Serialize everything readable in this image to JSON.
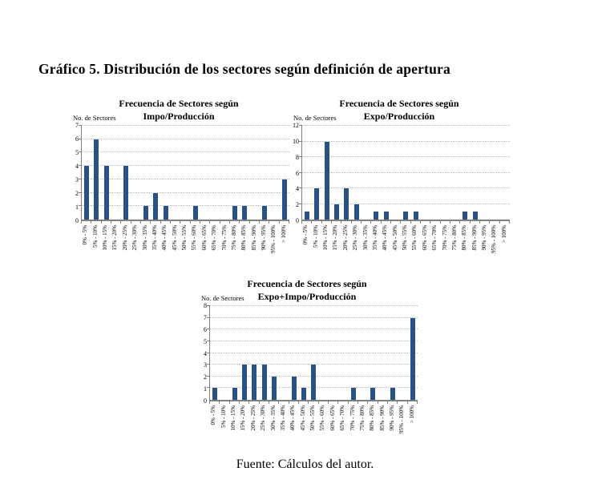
{
  "page": {
    "title": "Gráfico 5. Distribución de los sectores según definición de apertura",
    "source": "Fuente: Cálculos del autor."
  },
  "chart_data": [
    {
      "type": "bar",
      "title": "Frecuencia de Sectores según Impo/Producción",
      "title_line1": "Frecuencia de Sectores según",
      "title_line2": "Impo/Producción",
      "ylabel": "No. de Sectores",
      "xlabel": "",
      "categories": [
        "0% - 5%",
        "5% - 10%",
        "10% - 15%",
        "15% - 20%",
        "20% - 25%",
        "25% - 30%",
        "30% - 35%",
        "35% - 40%",
        "40% - 45%",
        "45% - 50%",
        "50% - 55%",
        "55% - 60%",
        "60% - 65%",
        "65% - 70%",
        "70% - 75%",
        "75% - 80%",
        "80% - 85%",
        "85% - 90%",
        "90% - 95%",
        "95% - 100%",
        "> 100%"
      ],
      "values": [
        4,
        6,
        4,
        0,
        4,
        0,
        1,
        2,
        1,
        0,
        0,
        1,
        0,
        0,
        0,
        1,
        1,
        0,
        1,
        0,
        3
      ],
      "ylim": [
        0,
        7
      ],
      "ytick_step": 1,
      "grid": true,
      "legend": "none",
      "bar_color": "#2a5183"
    },
    {
      "type": "bar",
      "title": "Frecuencia de Sectores según Expo/Producción",
      "title_line1": "Frecuencia de Sectores según",
      "title_line2": "Expo/Producción",
      "ylabel": "No. de Sectores",
      "xlabel": "",
      "categories": [
        "0% - 5%",
        "5% - 10%",
        "10% - 15%",
        "15% - 20%",
        "20% - 25%",
        "25% - 30%",
        "30% - 35%",
        "35% - 40%",
        "40% - 45%",
        "45% - 50%",
        "50% - 55%",
        "55% - 60%",
        "60% - 65%",
        "65% - 70%",
        "70% - 75%",
        "75% - 80%",
        "80% - 85%",
        "85% - 90%",
        "90% - 95%",
        "95% - 100%",
        "> 100%"
      ],
      "values": [
        1,
        4,
        10,
        2,
        4,
        2,
        0,
        1,
        1,
        0,
        1,
        1,
        0,
        0,
        0,
        0,
        1,
        1,
        0,
        0,
        0
      ],
      "ylim": [
        0,
        12
      ],
      "ytick_step": 2,
      "grid": true,
      "legend": "none",
      "bar_color": "#2a5183"
    },
    {
      "type": "bar",
      "title": "Frecuencia de Sectores según Expo+Impo/Producción",
      "title_line1": "Frecuencia de Sectores según",
      "title_line2": "Expo+Impo/Producción",
      "ylabel": "No. de Sectores",
      "xlabel": "",
      "categories": [
        "0% - 5%",
        "5% - 10%",
        "10% - 15%",
        "15% - 20%",
        "20% - 25%",
        "25% - 30%",
        "30% - 35%",
        "35% - 40%",
        "40% - 45%",
        "45% - 50%",
        "50% - 55%",
        "55% - 60%",
        "60% - 65%",
        "65% - 70%",
        "70% - 75%",
        "75% - 80%",
        "80% - 85%",
        "85% - 90%",
        "90% - 95%",
        "95% - 100%",
        "> 100%"
      ],
      "values": [
        1,
        0,
        1,
        3,
        3,
        3,
        2,
        0,
        2,
        1,
        3,
        0,
        0,
        0,
        1,
        0,
        1,
        0,
        1,
        0,
        7
      ],
      "ylim": [
        0,
        8
      ],
      "ytick_step": 1,
      "grid": true,
      "legend": "none",
      "bar_color": "#2a5183"
    }
  ]
}
